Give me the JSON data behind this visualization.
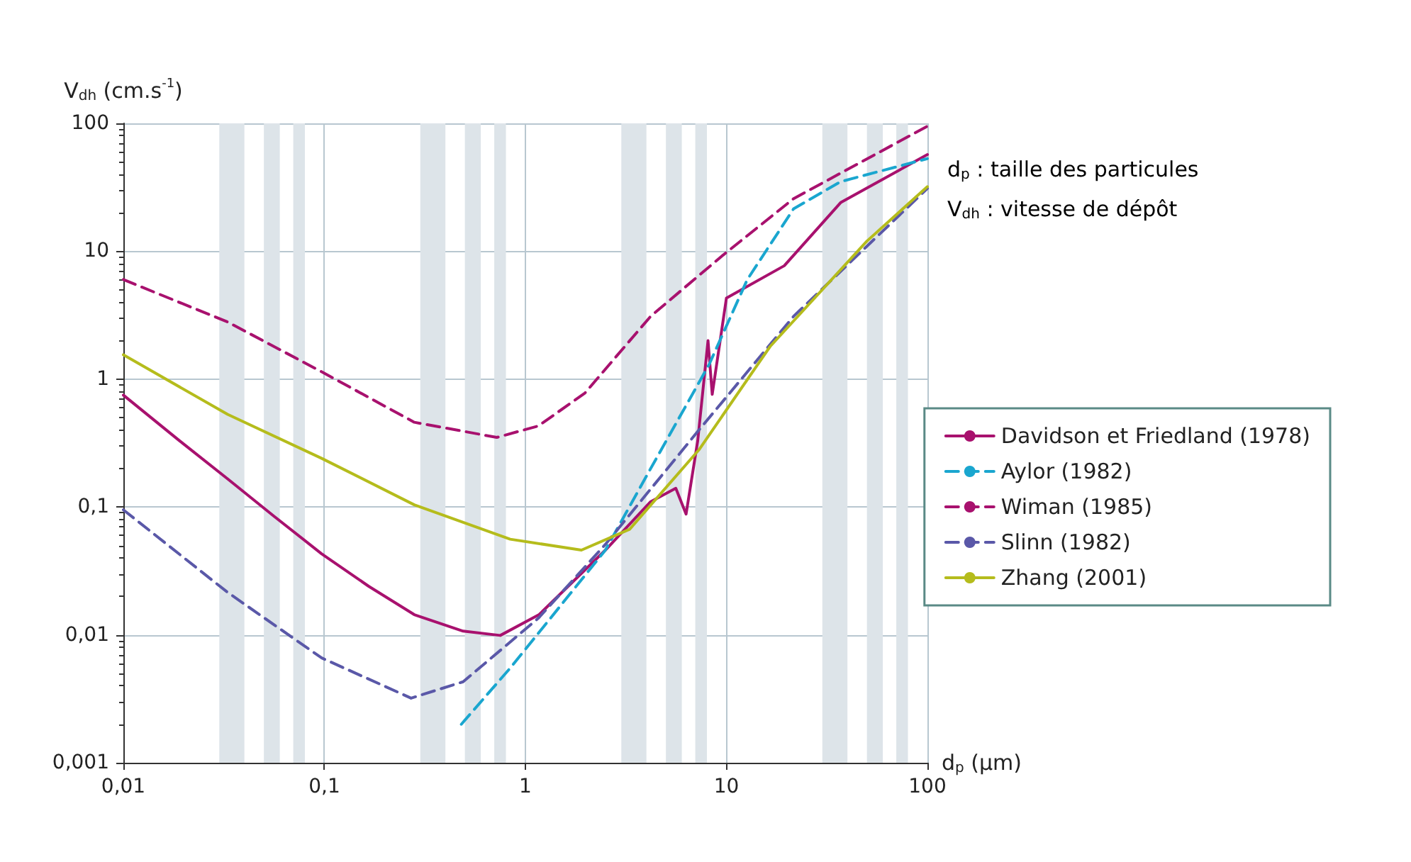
{
  "chart_data": {
    "type": "line",
    "xlabel": "d$_{p}$ (μm)",
    "ylabel": "V$_{dh}$ (cm.s$^{-1}$)",
    "annotations": [
      "d$_{p}$ : taille des particules",
      "V$_{dh}$ : vitesse de dépôt"
    ],
    "log": "xy",
    "xlim": [
      0.01,
      100
    ],
    "ylim": [
      0.001,
      100
    ],
    "xticks": [
      {
        "value": 0.01,
        "label": "0,01"
      },
      {
        "value": 0.1,
        "label": "0,1"
      },
      1,
      10,
      100
    ],
    "yticks": [
      {
        "value": 0.001,
        "label": "0,001"
      },
      {
        "value": 0.01,
        "label": "0,01"
      },
      {
        "value": 0.1,
        "label": "0,1"
      },
      1,
      10,
      100
    ],
    "grid": true,
    "legend": "right",
    "marker": "none",
    "bands": [
      {
        "axis": "x",
        "from": 0.03,
        "to": 0.04,
        "color": "#dde4e9"
      },
      {
        "axis": "x",
        "from": 0.05,
        "to": 0.06,
        "color": "#dde4e9"
      },
      {
        "axis": "x",
        "from": 0.07,
        "to": 0.08,
        "color": "#dde4e9"
      },
      {
        "axis": "x",
        "from": 0.3,
        "to": 0.4,
        "color": "#dde4e9"
      },
      {
        "axis": "x",
        "from": 0.5,
        "to": 0.6,
        "color": "#dde4e9"
      },
      {
        "axis": "x",
        "from": 0.7,
        "to": 0.8,
        "color": "#dde4e9"
      },
      {
        "axis": "x",
        "from": 3,
        "to": 4,
        "color": "#dde4e9"
      },
      {
        "axis": "x",
        "from": 5,
        "to": 6,
        "color": "#dde4e9"
      },
      {
        "axis": "x",
        "from": 7,
        "to": 8,
        "color": "#dde4e9"
      },
      {
        "axis": "x",
        "from": 30,
        "to": 40,
        "color": "#dde4e9"
      },
      {
        "axis": "x",
        "from": 50,
        "to": 60,
        "color": "#dde4e9"
      },
      {
        "axis": "x",
        "from": 70,
        "to": 80,
        "color": "#dde4e9"
      }
    ],
    "series": [
      {
        "name": "Davidson et Friedland (1978)",
        "color": "#a8116e",
        "line_style": "solid",
        "x": [
          0.01,
          0.019,
          0.033,
          0.056,
          0.097,
          0.166,
          0.28,
          0.49,
          0.75,
          1.17,
          1.45,
          2.5,
          4.2,
          5.6,
          6.3,
          7.2,
          8.1,
          8.5,
          10,
          19.4,
          37,
          100
        ],
        "values": [
          0.75,
          0.33,
          0.166,
          0.085,
          0.043,
          0.024,
          0.0144,
          0.0107,
          0.0099,
          0.0144,
          0.02,
          0.046,
          0.11,
          0.14,
          0.088,
          0.33,
          2,
          0.76,
          4.3,
          7.7,
          24,
          57
        ]
      },
      {
        "name": "Aylor (1982)",
        "color": "#1aa6cf",
        "line_style": "dashed",
        "x": [
          0.48,
          0.84,
          2.5,
          4.2,
          8.2,
          12.7,
          21.6,
          37,
          100
        ],
        "values": [
          0.002,
          0.0055,
          0.046,
          0.2,
          1.3,
          6,
          21.5,
          35,
          53
        ]
      },
      {
        "name": "Wiman (1985)",
        "color": "#a8116e",
        "line_style": "dashed",
        "x": [
          0.01,
          0.033,
          0.097,
          0.28,
          0.72,
          1.16,
          1.98,
          4.2,
          9.6,
          21.6,
          100
        ],
        "values": [
          6,
          2.8,
          1.14,
          0.46,
          0.35,
          0.43,
          0.78,
          3.1,
          9.3,
          25.8,
          95
        ]
      },
      {
        "name": "Slinn (1982)",
        "color": "#5a58a8",
        "line_style": "dashed",
        "x": [
          0.01,
          0.033,
          0.097,
          0.27,
          0.49,
          1.16,
          2.5,
          7.3,
          21.6,
          100
        ],
        "values": [
          0.095,
          0.0215,
          0.0066,
          0.0032,
          0.0043,
          0.0135,
          0.051,
          0.4,
          3.1,
          31
        ]
      },
      {
        "name": "Zhang (2001)",
        "color": "#b5bc1c",
        "line_style": "solid",
        "x": [
          0.01,
          0.033,
          0.097,
          0.28,
          0.84,
          1.9,
          3.3,
          7.3,
          16.5,
          50,
          100
        ],
        "values": [
          1.55,
          0.53,
          0.24,
          0.104,
          0.056,
          0.046,
          0.067,
          0.28,
          1.8,
          12,
          32
        ]
      }
    ]
  }
}
